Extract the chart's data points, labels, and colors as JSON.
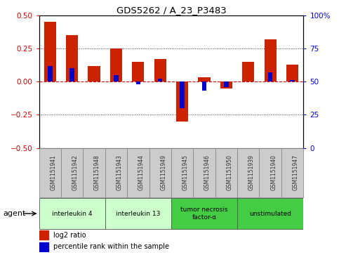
{
  "title": "GDS5262 / A_23_P3483",
  "samples": [
    "GSM1151941",
    "GSM1151942",
    "GSM1151948",
    "GSM1151943",
    "GSM1151944",
    "GSM1151949",
    "GSM1151945",
    "GSM1151946",
    "GSM1151950",
    "GSM1151939",
    "GSM1151940",
    "GSM1151947"
  ],
  "log2_ratio": [
    0.45,
    0.35,
    0.12,
    0.25,
    0.15,
    0.17,
    -0.3,
    0.03,
    -0.05,
    0.15,
    0.32,
    0.13
  ],
  "percentile": [
    62,
    60,
    50,
    55,
    48,
    52,
    30,
    43,
    46,
    50,
    57,
    51
  ],
  "agents": [
    {
      "label": "interleukin 4",
      "start": 0,
      "end": 3,
      "color": "#ccffcc"
    },
    {
      "label": "interleukin 13",
      "start": 3,
      "end": 6,
      "color": "#ccffcc"
    },
    {
      "label": "tumor necrosis\nfactor-α",
      "start": 6,
      "end": 9,
      "color": "#44cc44"
    },
    {
      "label": "unstimulated",
      "start": 9,
      "end": 12,
      "color": "#44cc44"
    }
  ],
  "ylim_left": [
    -0.5,
    0.5
  ],
  "ylim_right": [
    0,
    100
  ],
  "yticks_left": [
    -0.5,
    -0.25,
    0.0,
    0.25,
    0.5
  ],
  "yticks_right": [
    0,
    25,
    50,
    75,
    100
  ],
  "hline_color": "#cc0000",
  "bar_color": "#cc2200",
  "percentile_color": "#0000cc",
  "dotted_color": "#444444",
  "background_color": "#ffffff",
  "agent_label": "agent",
  "sample_box_color": "#cccccc",
  "sample_box_edge": "#888888"
}
